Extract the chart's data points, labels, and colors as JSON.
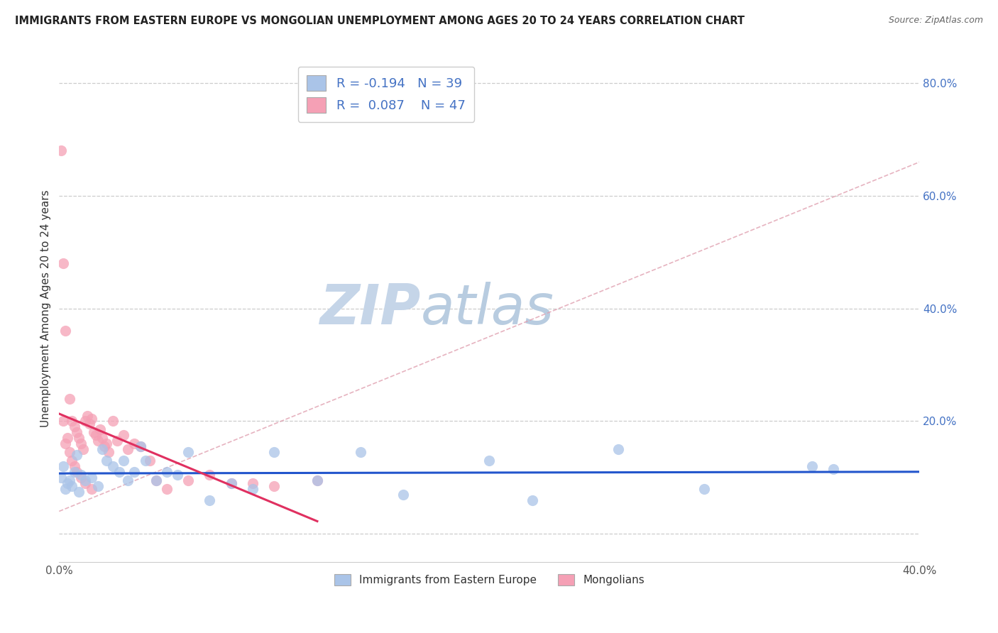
{
  "title": "IMMIGRANTS FROM EASTERN EUROPE VS MONGOLIAN UNEMPLOYMENT AMONG AGES 20 TO 24 YEARS CORRELATION CHART",
  "source": "Source: ZipAtlas.com",
  "ylabel": "Unemployment Among Ages 20 to 24 years",
  "legend_label_1": "Immigrants from Eastern Europe",
  "legend_label_2": "Mongolians",
  "R1": -0.194,
  "N1": 39,
  "R2": 0.087,
  "N2": 47,
  "color_blue": "#aac4e8",
  "color_pink": "#f5a0b5",
  "color_blue_line": "#2255cc",
  "color_pink_line": "#e03060",
  "color_diag_line": "#e0a0b0",
  "xlim": [
    0.0,
    0.4
  ],
  "ylim": [
    -0.05,
    0.85
  ],
  "xticks": [
    0.0,
    0.4
  ],
  "xtick_labels": [
    "0.0%",
    "40.0%"
  ],
  "yticks": [
    0.0,
    0.2,
    0.4,
    0.6,
    0.8
  ],
  "ytick_labels": [
    "",
    "20.0%",
    "40.0%",
    "60.0%",
    "80.0%"
  ],
  "blue_x": [
    0.001,
    0.002,
    0.003,
    0.004,
    0.005,
    0.006,
    0.007,
    0.008,
    0.009,
    0.01,
    0.012,
    0.015,
    0.018,
    0.02,
    0.022,
    0.025,
    0.028,
    0.03,
    0.032,
    0.035,
    0.038,
    0.04,
    0.045,
    0.05,
    0.055,
    0.06,
    0.07,
    0.08,
    0.09,
    0.1,
    0.12,
    0.14,
    0.16,
    0.2,
    0.22,
    0.26,
    0.3,
    0.35,
    0.36
  ],
  "blue_y": [
    0.1,
    0.12,
    0.08,
    0.09,
    0.095,
    0.085,
    0.11,
    0.14,
    0.075,
    0.105,
    0.095,
    0.1,
    0.085,
    0.15,
    0.13,
    0.12,
    0.11,
    0.13,
    0.095,
    0.11,
    0.155,
    0.13,
    0.095,
    0.11,
    0.105,
    0.145,
    0.06,
    0.09,
    0.08,
    0.145,
    0.095,
    0.145,
    0.07,
    0.13,
    0.06,
    0.15,
    0.08,
    0.12,
    0.115
  ],
  "pink_x": [
    0.001,
    0.002,
    0.002,
    0.003,
    0.003,
    0.004,
    0.005,
    0.005,
    0.006,
    0.006,
    0.007,
    0.007,
    0.008,
    0.008,
    0.009,
    0.01,
    0.01,
    0.011,
    0.012,
    0.012,
    0.013,
    0.014,
    0.015,
    0.015,
    0.016,
    0.017,
    0.018,
    0.019,
    0.02,
    0.021,
    0.022,
    0.023,
    0.025,
    0.027,
    0.03,
    0.032,
    0.035,
    0.038,
    0.042,
    0.045,
    0.05,
    0.06,
    0.07,
    0.08,
    0.09,
    0.1,
    0.12
  ],
  "pink_y": [
    0.68,
    0.48,
    0.2,
    0.36,
    0.16,
    0.17,
    0.24,
    0.145,
    0.2,
    0.13,
    0.19,
    0.12,
    0.18,
    0.11,
    0.17,
    0.16,
    0.1,
    0.15,
    0.2,
    0.09,
    0.21,
    0.195,
    0.205,
    0.08,
    0.18,
    0.175,
    0.165,
    0.185,
    0.17,
    0.155,
    0.16,
    0.145,
    0.2,
    0.165,
    0.175,
    0.15,
    0.16,
    0.155,
    0.13,
    0.095,
    0.08,
    0.095,
    0.105,
    0.09,
    0.09,
    0.085,
    0.095
  ],
  "watermark_zip": "ZIP",
  "watermark_atlas": "atlas",
  "watermark_color": "#c5d5e8",
  "grid_color": "#cccccc",
  "background_color": "#ffffff"
}
